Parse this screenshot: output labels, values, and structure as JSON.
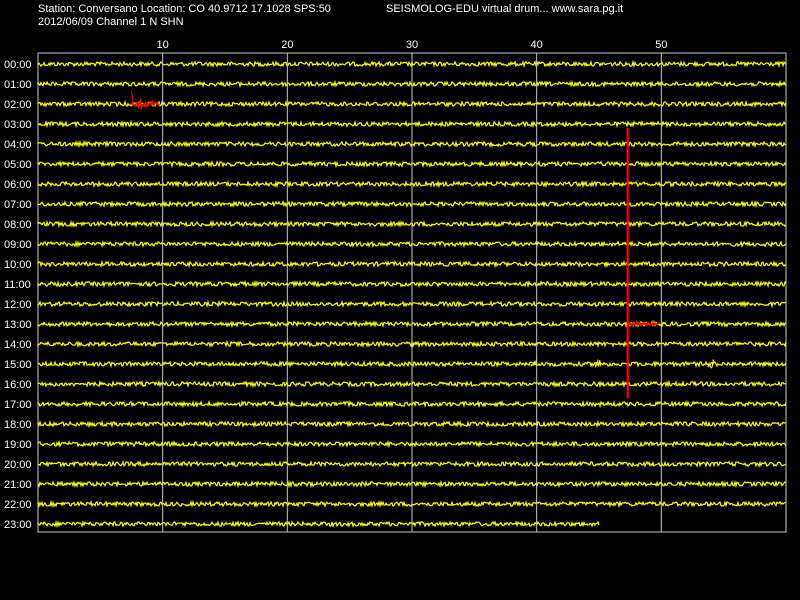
{
  "header": {
    "station_line": "Station: Conversano Location: CO 40.9712 17.1028 SPS:50",
    "date_line": "2012/06/09  Channel 1 N SHN",
    "app_line": "SEISMOLOG-EDU virtual drum... www.sara.pg.it"
  },
  "colors": {
    "background": "#000000",
    "trace": "#ffff00",
    "event": "#ff0000",
    "grid": "#c8c8c8",
    "text": "#ffffff"
  },
  "chart_data": {
    "type": "line",
    "title": "",
    "xlabel": "",
    "ylabel": "",
    "x_range": [
      0,
      60
    ],
    "x_ticks": [
      {
        "value": 10,
        "label": "10"
      },
      {
        "value": 20,
        "label": "20"
      },
      {
        "value": 30,
        "label": "30"
      },
      {
        "value": 40,
        "label": "40"
      },
      {
        "value": 50,
        "label": "50"
      }
    ],
    "rows": [
      "00:00",
      "01:00",
      "02:00",
      "03:00",
      "04:00",
      "05:00",
      "06:00",
      "07:00",
      "08:00",
      "09:00",
      "10:00",
      "11:00",
      "12:00",
      "13:00",
      "14:00",
      "15:00",
      "16:00",
      "17:00",
      "18:00",
      "19:00",
      "20:00",
      "21:00",
      "22:00",
      "23:00"
    ],
    "last_row_end_minute": 45,
    "grid": true,
    "events": [
      {
        "row": "02:00",
        "start_minute": 7.5,
        "end_minute": 9.8,
        "kind": "local-event"
      },
      {
        "row": "13:00",
        "start_minute": 47.3,
        "end_minute": 49.8,
        "kind": "large-event",
        "row_span": [
          3.3,
          16.8
        ]
      }
    ],
    "bursts": [
      {
        "row": "15:00",
        "minute": 39.8
      },
      {
        "row": "15:00",
        "minute": 44.9
      },
      {
        "row": "15:00",
        "minute": 54.0
      }
    ]
  }
}
